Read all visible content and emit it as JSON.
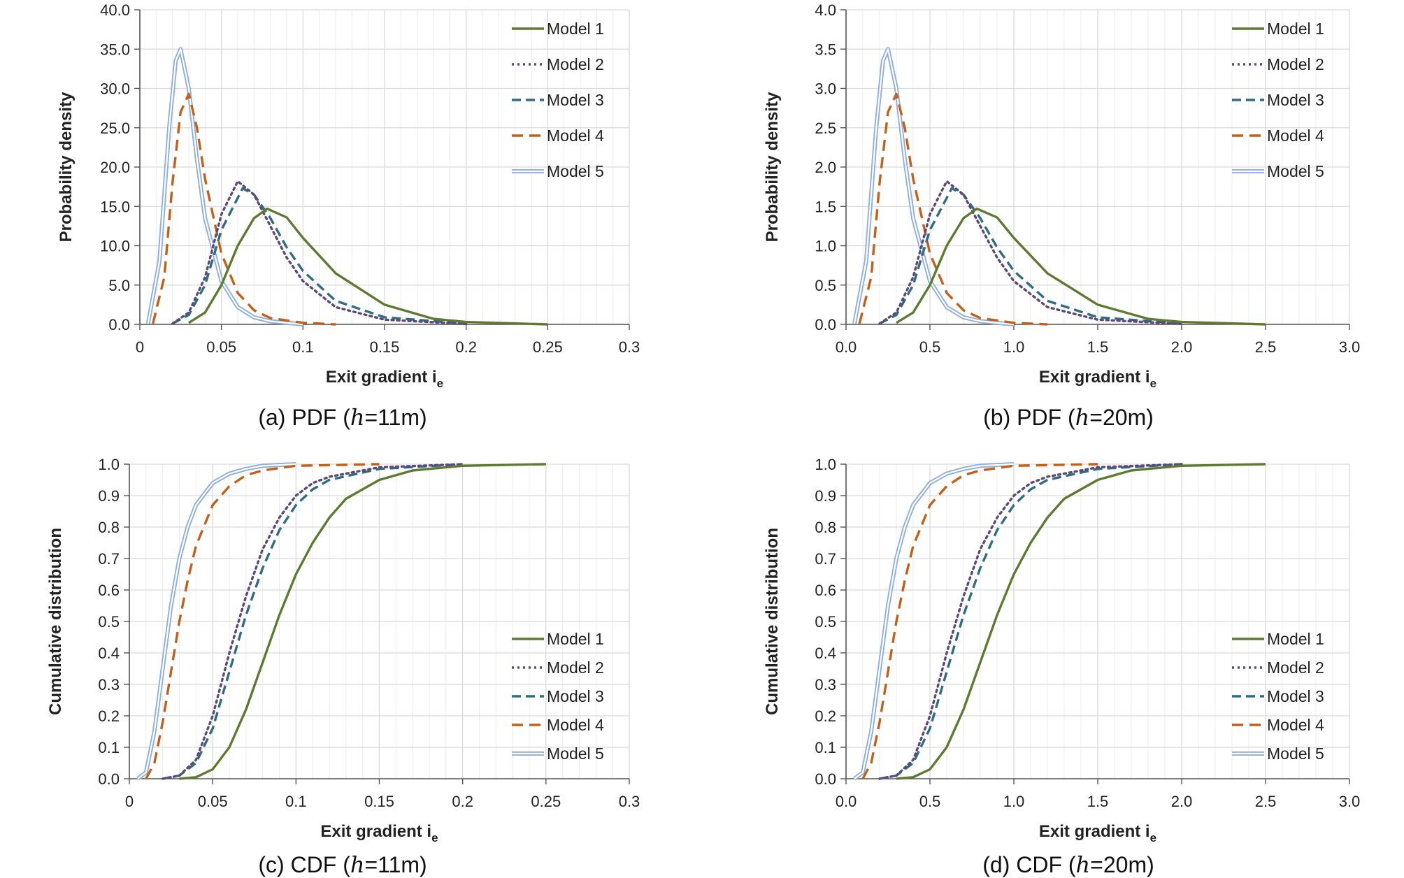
{
  "series_styles": {
    "Model 1": {
      "color": "#5e7a32",
      "dash": "solid"
    },
    "Model 2": {
      "color": "#5c4a7a",
      "dash": "dotted"
    },
    "Model 3": {
      "color": "#2f6d80",
      "dash": "dashed"
    },
    "Model 4": {
      "color": "#c2601a",
      "dash": "longdash"
    },
    "Model 5": {
      "color": "#8fb0dc",
      "dash": "double"
    }
  },
  "colors": {
    "grid_major": "#d9d9d9",
    "grid_minor": "#ececec",
    "axis": "#555555"
  },
  "chart_data": [
    {
      "id": "a",
      "type": "line",
      "kind": "pdf",
      "caption": {
        "prefix": "(a)  PDF  (",
        "var": "h",
        "suffix": "=11m)"
      },
      "xlabel": "Exit gradient i",
      "xlabel_sub": "e",
      "ylabel": "Probability  density",
      "xlim": [
        0,
        0.3
      ],
      "ylim": [
        0,
        40
      ],
      "xticks": [
        0,
        0.05,
        0.1,
        0.15,
        0.2,
        0.25,
        0.3
      ],
      "xtick_labels": [
        "0",
        "0.05",
        "0.1",
        "0.15",
        "0.2",
        "0.25",
        "0.3"
      ],
      "yticks": [
        0,
        5,
        10,
        15,
        20,
        25,
        30,
        35,
        40
      ],
      "ytick_labels": [
        "0.0",
        "5.0",
        "10.0",
        "15.0",
        "20.0",
        "25.0",
        "30.0",
        "35.0",
        "40.0"
      ],
      "legend": "top-right",
      "series": [
        {
          "name": "Model 1",
          "x": [
            0.03,
            0.04,
            0.05,
            0.06,
            0.07,
            0.078,
            0.09,
            0.1,
            0.12,
            0.15,
            0.18,
            0.2,
            0.25
          ],
          "values": [
            0.2,
            1.5,
            5.0,
            10.0,
            13.5,
            14.7,
            13.6,
            11.0,
            6.5,
            2.5,
            0.7,
            0.3,
            0.0
          ]
        },
        {
          "name": "Model 2",
          "x": [
            0.02,
            0.03,
            0.04,
            0.05,
            0.06,
            0.07,
            0.08,
            0.09,
            0.1,
            0.12,
            0.15,
            0.2
          ],
          "values": [
            0.1,
            1.5,
            6.0,
            14.0,
            18.2,
            16.5,
            12.5,
            8.5,
            5.5,
            2.2,
            0.6,
            0.05
          ]
        },
        {
          "name": "Model 3",
          "x": [
            0.02,
            0.03,
            0.04,
            0.05,
            0.063,
            0.07,
            0.08,
            0.09,
            0.1,
            0.12,
            0.15,
            0.2
          ],
          "values": [
            0.1,
            1.2,
            5.0,
            12.0,
            17.3,
            16.5,
            13.5,
            9.8,
            6.8,
            3.0,
            0.9,
            0.1
          ]
        },
        {
          "name": "Model 4",
          "x": [
            0.008,
            0.015,
            0.02,
            0.025,
            0.03,
            0.035,
            0.04,
            0.05,
            0.06,
            0.07,
            0.08,
            0.1,
            0.12
          ],
          "values": [
            0.1,
            6.0,
            18.0,
            27.0,
            29.3,
            25.0,
            18.5,
            9.0,
            4.0,
            1.8,
            0.8,
            0.2,
            0.0
          ]
        },
        {
          "name": "Model 5",
          "x": [
            0.005,
            0.012,
            0.018,
            0.022,
            0.025,
            0.03,
            0.035,
            0.04,
            0.05,
            0.06,
            0.07,
            0.08,
            0.1
          ],
          "values": [
            0.1,
            8.0,
            25.0,
            33.5,
            35.0,
            30.0,
            21.0,
            13.5,
            5.5,
            2.2,
            0.9,
            0.4,
            0.0
          ]
        }
      ]
    },
    {
      "id": "b",
      "type": "line",
      "kind": "pdf",
      "caption": {
        "prefix": "(b)  PDF  (",
        "var": "h",
        "suffix": "=20m)"
      },
      "xlabel": "Exit gradient i",
      "xlabel_sub": "e",
      "ylabel": "Probability  density",
      "xlim": [
        0,
        3.0
      ],
      "ylim": [
        0,
        4.0
      ],
      "xticks": [
        0,
        0.5,
        1.0,
        1.5,
        2.0,
        2.5,
        3.0
      ],
      "xtick_labels": [
        "0.0",
        "0.5",
        "1.0",
        "1.5",
        "2.0",
        "2.5",
        "3.0"
      ],
      "yticks": [
        0,
        0.5,
        1.0,
        1.5,
        2.0,
        2.5,
        3.0,
        3.5,
        4.0
      ],
      "ytick_labels": [
        "0.0",
        "0.5",
        "1.0",
        "1.5",
        "2.0",
        "2.5",
        "3.0",
        "3.5",
        "4.0"
      ],
      "legend": "top-right",
      "series": [
        {
          "name": "Model 1",
          "x": [
            0.3,
            0.4,
            0.5,
            0.6,
            0.7,
            0.78,
            0.9,
            1.0,
            1.2,
            1.5,
            1.8,
            2.0,
            2.5
          ],
          "values": [
            0.02,
            0.15,
            0.5,
            1.0,
            1.35,
            1.47,
            1.36,
            1.1,
            0.65,
            0.25,
            0.07,
            0.03,
            0.0
          ]
        },
        {
          "name": "Model 2",
          "x": [
            0.2,
            0.3,
            0.4,
            0.5,
            0.6,
            0.7,
            0.8,
            0.9,
            1.0,
            1.2,
            1.5,
            2.0
          ],
          "values": [
            0.01,
            0.15,
            0.6,
            1.4,
            1.82,
            1.65,
            1.25,
            0.85,
            0.55,
            0.22,
            0.06,
            0.005
          ]
        },
        {
          "name": "Model 3",
          "x": [
            0.2,
            0.3,
            0.4,
            0.5,
            0.63,
            0.7,
            0.8,
            0.9,
            1.0,
            1.2,
            1.5,
            2.0
          ],
          "values": [
            0.01,
            0.12,
            0.5,
            1.2,
            1.73,
            1.65,
            1.35,
            0.98,
            0.68,
            0.3,
            0.09,
            0.01
          ]
        },
        {
          "name": "Model 4",
          "x": [
            0.08,
            0.15,
            0.2,
            0.25,
            0.3,
            0.35,
            0.4,
            0.5,
            0.6,
            0.7,
            0.8,
            1.0,
            1.2
          ],
          "values": [
            0.01,
            0.6,
            1.8,
            2.7,
            2.93,
            2.5,
            1.85,
            0.9,
            0.4,
            0.18,
            0.08,
            0.02,
            0.0
          ]
        },
        {
          "name": "Model 5",
          "x": [
            0.05,
            0.12,
            0.18,
            0.22,
            0.25,
            0.3,
            0.35,
            0.4,
            0.5,
            0.6,
            0.7,
            0.8,
            1.0
          ],
          "values": [
            0.01,
            0.8,
            2.5,
            3.35,
            3.5,
            3.0,
            2.1,
            1.35,
            0.55,
            0.22,
            0.09,
            0.04,
            0.0
          ]
        }
      ]
    },
    {
      "id": "c",
      "type": "line",
      "kind": "cdf",
      "caption": {
        "prefix": "(c)  CDF  (",
        "var": "h",
        "suffix": "=11m)"
      },
      "xlabel": "Exit gradient i",
      "xlabel_sub": "e",
      "ylabel": "Cumulative  distribution",
      "xlim": [
        0,
        0.3
      ],
      "ylim": [
        0,
        1.0
      ],
      "xticks": [
        0,
        0.05,
        0.1,
        0.15,
        0.2,
        0.25,
        0.3
      ],
      "xtick_labels": [
        "0",
        "0.05",
        "0.1",
        "0.15",
        "0.2",
        "0.25",
        "0.3"
      ],
      "yticks": [
        0,
        0.1,
        0.2,
        0.3,
        0.4,
        0.5,
        0.6,
        0.7,
        0.8,
        0.9,
        1.0
      ],
      "ytick_labels": [
        "0.0",
        "0.1",
        "0.2",
        "0.3",
        "0.4",
        "0.5",
        "0.6",
        "0.7",
        "0.8",
        "0.9",
        "1.0"
      ],
      "legend": "bottom-right",
      "series": [
        {
          "name": "Model 1",
          "x": [
            0.03,
            0.04,
            0.05,
            0.06,
            0.07,
            0.08,
            0.09,
            0.1,
            0.11,
            0.12,
            0.13,
            0.15,
            0.17,
            0.2,
            0.25
          ],
          "values": [
            0.0,
            0.005,
            0.03,
            0.1,
            0.22,
            0.37,
            0.52,
            0.65,
            0.75,
            0.83,
            0.89,
            0.95,
            0.98,
            0.995,
            1.0
          ]
        },
        {
          "name": "Model 2",
          "x": [
            0.02,
            0.03,
            0.04,
            0.05,
            0.06,
            0.07,
            0.08,
            0.09,
            0.1,
            0.11,
            0.12,
            0.15,
            0.2
          ],
          "values": [
            0.0,
            0.01,
            0.06,
            0.2,
            0.4,
            0.58,
            0.73,
            0.83,
            0.9,
            0.94,
            0.96,
            0.99,
            1.0
          ]
        },
        {
          "name": "Model 3",
          "x": [
            0.02,
            0.03,
            0.04,
            0.05,
            0.06,
            0.07,
            0.08,
            0.09,
            0.1,
            0.11,
            0.12,
            0.15,
            0.2
          ],
          "values": [
            0.0,
            0.01,
            0.05,
            0.16,
            0.34,
            0.52,
            0.67,
            0.79,
            0.87,
            0.92,
            0.95,
            0.985,
            1.0
          ]
        },
        {
          "name": "Model 4",
          "x": [
            0.01,
            0.015,
            0.02,
            0.025,
            0.03,
            0.035,
            0.04,
            0.05,
            0.06,
            0.07,
            0.08,
            0.1,
            0.15
          ],
          "values": [
            0.0,
            0.05,
            0.18,
            0.34,
            0.5,
            0.63,
            0.74,
            0.87,
            0.93,
            0.965,
            0.98,
            0.995,
            1.0
          ]
        },
        {
          "name": "Model 5",
          "x": [
            0.005,
            0.01,
            0.015,
            0.02,
            0.025,
            0.03,
            0.035,
            0.04,
            0.05,
            0.06,
            0.07,
            0.08,
            0.1
          ],
          "values": [
            0.0,
            0.02,
            0.15,
            0.35,
            0.55,
            0.7,
            0.8,
            0.87,
            0.94,
            0.97,
            0.985,
            0.995,
            1.0
          ]
        }
      ]
    },
    {
      "id": "d",
      "type": "line",
      "kind": "cdf",
      "caption": {
        "prefix": "(d)  CDF  (",
        "var": "h",
        "suffix": "=20m)"
      },
      "xlabel": "Exit gradient i",
      "xlabel_sub": "e",
      "ylabel": "Cumulative  distribution",
      "xlim": [
        0,
        3.0
      ],
      "ylim": [
        0,
        1.0
      ],
      "xticks": [
        0,
        0.5,
        1.0,
        1.5,
        2.0,
        2.5,
        3.0
      ],
      "xtick_labels": [
        "0.0",
        "0.5",
        "1.0",
        "1.5",
        "2.0",
        "2.5",
        "3.0"
      ],
      "yticks": [
        0,
        0.1,
        0.2,
        0.3,
        0.4,
        0.5,
        0.6,
        0.7,
        0.8,
        0.9,
        1.0
      ],
      "ytick_labels": [
        "0.0",
        "0.1",
        "0.2",
        "0.3",
        "0.4",
        "0.5",
        "0.6",
        "0.7",
        "0.8",
        "0.9",
        "1.0"
      ],
      "legend": "bottom-right",
      "series": [
        {
          "name": "Model 1",
          "x": [
            0.3,
            0.4,
            0.5,
            0.6,
            0.7,
            0.8,
            0.9,
            1.0,
            1.1,
            1.2,
            1.3,
            1.5,
            1.7,
            2.0,
            2.5
          ],
          "values": [
            0.0,
            0.005,
            0.03,
            0.1,
            0.22,
            0.37,
            0.52,
            0.65,
            0.75,
            0.83,
            0.89,
            0.95,
            0.98,
            0.995,
            1.0
          ]
        },
        {
          "name": "Model 2",
          "x": [
            0.2,
            0.3,
            0.4,
            0.5,
            0.6,
            0.7,
            0.8,
            0.9,
            1.0,
            1.1,
            1.2,
            1.5,
            2.0
          ],
          "values": [
            0.0,
            0.01,
            0.06,
            0.2,
            0.4,
            0.58,
            0.73,
            0.83,
            0.9,
            0.94,
            0.96,
            0.99,
            1.0
          ]
        },
        {
          "name": "Model 3",
          "x": [
            0.2,
            0.3,
            0.4,
            0.5,
            0.6,
            0.7,
            0.8,
            0.9,
            1.0,
            1.1,
            1.2,
            1.5,
            2.0
          ],
          "values": [
            0.0,
            0.01,
            0.05,
            0.16,
            0.34,
            0.52,
            0.67,
            0.79,
            0.87,
            0.92,
            0.95,
            0.985,
            1.0
          ]
        },
        {
          "name": "Model 4",
          "x": [
            0.1,
            0.15,
            0.2,
            0.25,
            0.3,
            0.35,
            0.4,
            0.5,
            0.6,
            0.7,
            0.8,
            1.0,
            1.5
          ],
          "values": [
            0.0,
            0.05,
            0.18,
            0.34,
            0.5,
            0.63,
            0.74,
            0.87,
            0.93,
            0.965,
            0.98,
            0.995,
            1.0
          ]
        },
        {
          "name": "Model 5",
          "x": [
            0.05,
            0.1,
            0.15,
            0.2,
            0.25,
            0.3,
            0.35,
            0.4,
            0.5,
            0.6,
            0.7,
            0.8,
            1.0
          ],
          "values": [
            0.0,
            0.02,
            0.15,
            0.35,
            0.55,
            0.7,
            0.8,
            0.87,
            0.94,
            0.97,
            0.985,
            0.995,
            1.0
          ]
        }
      ]
    }
  ]
}
